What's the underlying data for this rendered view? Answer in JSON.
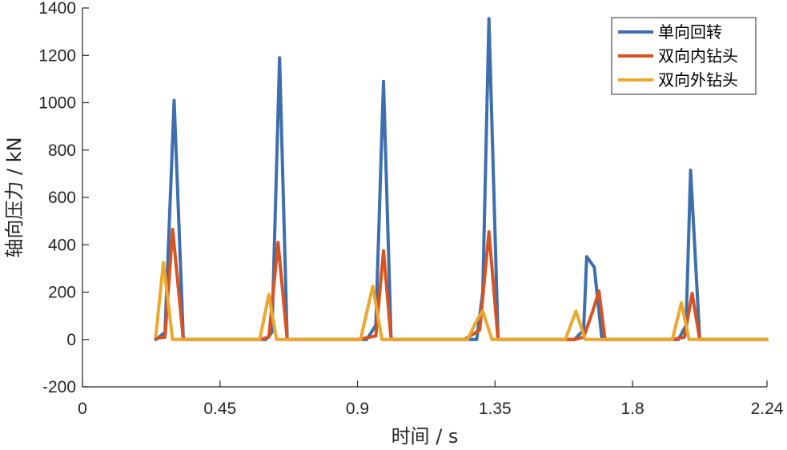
{
  "chart_data": {
    "type": "line",
    "xlabel": "时间 / s",
    "ylabel": "轴向压力 / kN",
    "xlim": [
      0,
      2.24
    ],
    "ylim": [
      -200,
      1400
    ],
    "xticks": [
      0,
      0.45,
      0.9,
      1.35,
      1.8,
      2.24
    ],
    "xtick_labels": [
      "0",
      "0.45",
      "0.9",
      "1.35",
      "1.8",
      "2.24"
    ],
    "yticks": [
      -200,
      0,
      200,
      400,
      600,
      800,
      1000,
      1200,
      1400
    ],
    "ytick_labels": [
      "-200",
      "0",
      "200",
      "400",
      "600",
      "800",
      "1000",
      "1200",
      "1400"
    ],
    "grid": false,
    "legend_position": "top-right",
    "series": [
      {
        "name": "单向回转",
        "color": "#3d6eae",
        "points": [
          [
            0.24,
            0
          ],
          [
            0.27,
            30
          ],
          [
            0.3,
            1010
          ],
          [
            0.33,
            0
          ],
          [
            0.6,
            0
          ],
          [
            0.62,
            30
          ],
          [
            0.645,
            1190
          ],
          [
            0.67,
            0
          ],
          [
            0.93,
            0
          ],
          [
            0.96,
            60
          ],
          [
            0.985,
            1090
          ],
          [
            1.01,
            0
          ],
          [
            1.29,
            0
          ],
          [
            1.31,
            200
          ],
          [
            1.33,
            1355
          ],
          [
            1.36,
            0
          ],
          [
            1.61,
            0
          ],
          [
            1.64,
            40
          ],
          [
            1.65,
            350
          ],
          [
            1.675,
            305
          ],
          [
            1.7,
            0
          ],
          [
            1.95,
            0
          ],
          [
            1.975,
            60
          ],
          [
            1.99,
            715
          ],
          [
            2.02,
            0
          ],
          [
            2.24,
            0
          ]
        ]
      },
      {
        "name": "双向内钻头",
        "color": "#d95320",
        "points": [
          [
            0.24,
            5
          ],
          [
            0.27,
            10
          ],
          [
            0.295,
            465
          ],
          [
            0.33,
            0
          ],
          [
            0.58,
            0
          ],
          [
            0.61,
            10
          ],
          [
            0.64,
            410
          ],
          [
            0.67,
            0
          ],
          [
            0.9,
            0
          ],
          [
            0.96,
            15
          ],
          [
            0.985,
            375
          ],
          [
            1.01,
            0
          ],
          [
            1.25,
            0
          ],
          [
            1.3,
            40
          ],
          [
            1.33,
            455
          ],
          [
            1.36,
            0
          ],
          [
            1.61,
            0
          ],
          [
            1.64,
            10
          ],
          [
            1.67,
            120
          ],
          [
            1.69,
            205
          ],
          [
            1.71,
            0
          ],
          [
            1.93,
            0
          ],
          [
            1.97,
            10
          ],
          [
            1.995,
            195
          ],
          [
            2.02,
            0
          ],
          [
            2.24,
            0
          ]
        ]
      },
      {
        "name": "双向外钻头",
        "color": "#eca82e",
        "points": [
          [
            0.24,
            15
          ],
          [
            0.265,
            325
          ],
          [
            0.295,
            0
          ],
          [
            0.58,
            0
          ],
          [
            0.61,
            190
          ],
          [
            0.635,
            0
          ],
          [
            0.91,
            0
          ],
          [
            0.95,
            225
          ],
          [
            0.98,
            0
          ],
          [
            1.26,
            0
          ],
          [
            1.29,
            80
          ],
          [
            1.31,
            120
          ],
          [
            1.34,
            0
          ],
          [
            1.58,
            0
          ],
          [
            1.615,
            120
          ],
          [
            1.645,
            0
          ],
          [
            1.93,
            0
          ],
          [
            1.96,
            155
          ],
          [
            1.985,
            0
          ],
          [
            2.24,
            0
          ]
        ]
      }
    ]
  }
}
